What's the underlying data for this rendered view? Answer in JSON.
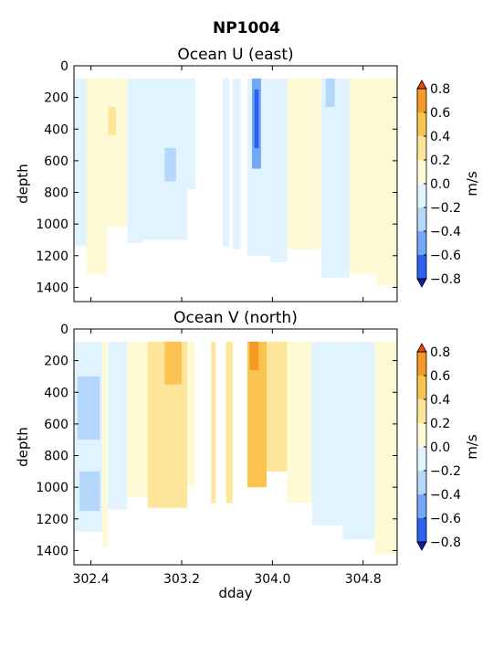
{
  "figure_title": "NP1004",
  "chart_data": [
    {
      "type": "heatmap",
      "title": "Ocean U (east)",
      "xlabel": "",
      "ylabel": "depth",
      "xlim": [
        302.25,
        305.1
      ],
      "ylim": [
        1490,
        0
      ],
      "x_ticks": [
        302.4,
        303.2,
        304.0,
        304.8
      ],
      "x_tick_labels": [
        "",
        "",
        "",
        ""
      ],
      "y_ticks": [
        0,
        200,
        400,
        600,
        800,
        1000,
        1200,
        1400
      ],
      "y_tick_labels": [
        "0",
        "200",
        "400",
        "600",
        "800",
        "1000",
        "1200",
        "1400"
      ],
      "colorbar": {
        "label": "m/s",
        "ticks": [
          "0.8",
          "0.6",
          "0.4",
          "0.2",
          "0.0",
          "−0.2",
          "−0.4",
          "−0.6",
          "−0.8"
        ]
      },
      "regions": [
        {
          "x": [
            302.25,
            302.36
          ],
          "depth": [
            80,
            1140
          ],
          "value": -0.1
        },
        {
          "x": [
            302.36,
            302.54
          ],
          "depth": [
            80,
            1320
          ],
          "value": 0.1
        },
        {
          "x": [
            302.54,
            302.72
          ],
          "depth": [
            80,
            1020
          ],
          "value": 0.1
        },
        {
          "x": [
            302.55,
            302.62
          ],
          "depth": [
            260,
            440
          ],
          "value": 0.3
        },
        {
          "x": [
            302.72,
            302.86
          ],
          "depth": [
            80,
            1120
          ],
          "value": -0.1
        },
        {
          "x": [
            302.86,
            303.25
          ],
          "depth": [
            80,
            1100
          ],
          "value": -0.1
        },
        {
          "x": [
            303.05,
            303.15
          ],
          "depth": [
            520,
            730
          ],
          "value": -0.3
        },
        {
          "x": [
            303.25,
            303.32
          ],
          "depth": [
            80,
            780
          ],
          "value": -0.1
        },
        {
          "x": [
            303.56,
            303.62
          ],
          "depth": [
            80,
            1140
          ],
          "value": -0.1
        },
        {
          "x": [
            303.65,
            303.72
          ],
          "depth": [
            80,
            1160
          ],
          "value": -0.1
        },
        {
          "x": [
            303.78,
            303.98
          ],
          "depth": [
            80,
            1200
          ],
          "value": -0.1
        },
        {
          "x": [
            303.82,
            303.9
          ],
          "depth": [
            80,
            650
          ],
          "value": -0.5
        },
        {
          "x": [
            303.84,
            303.88
          ],
          "depth": [
            150,
            520
          ],
          "value": -0.7
        },
        {
          "x": [
            303.98,
            304.13
          ],
          "depth": [
            80,
            1240
          ],
          "value": -0.1
        },
        {
          "x": [
            304.13,
            304.43
          ],
          "depth": [
            80,
            1160
          ],
          "value": 0.1
        },
        {
          "x": [
            304.43,
            304.68
          ],
          "depth": [
            80,
            1340
          ],
          "value": -0.1
        },
        {
          "x": [
            304.47,
            304.55
          ],
          "depth": [
            80,
            260
          ],
          "value": -0.3
        },
        {
          "x": [
            304.68,
            304.92
          ],
          "depth": [
            80,
            1320
          ],
          "value": 0.1
        },
        {
          "x": [
            304.92,
            305.1
          ],
          "depth": [
            80,
            1390
          ],
          "value": 0.1
        }
      ]
    },
    {
      "type": "heatmap",
      "title": "Ocean V (north)",
      "xlabel": "dday",
      "ylabel": "depth",
      "xlim": [
        302.25,
        305.1
      ],
      "ylim": [
        1490,
        0
      ],
      "x_ticks": [
        302.4,
        303.2,
        304.0,
        304.8
      ],
      "x_tick_labels": [
        "302.4",
        "303.2",
        "304.0",
        "304.8"
      ],
      "y_ticks": [
        0,
        200,
        400,
        600,
        800,
        1000,
        1200,
        1400
      ],
      "y_tick_labels": [
        "0",
        "200",
        "400",
        "600",
        "800",
        "1000",
        "1200",
        "1400"
      ],
      "colorbar": {
        "label": "m/s",
        "ticks": [
          "0.8",
          "0.6",
          "0.4",
          "0.2",
          "0.0",
          "−0.2",
          "−0.4",
          "−0.6",
          "−0.8"
        ]
      },
      "regions": [
        {
          "x": [
            302.25,
            302.5
          ],
          "depth": [
            80,
            1280
          ],
          "value": -0.1
        },
        {
          "x": [
            302.28,
            302.48
          ],
          "depth": [
            300,
            700
          ],
          "value": -0.3
        },
        {
          "x": [
            302.3,
            302.48
          ],
          "depth": [
            900,
            1150
          ],
          "value": -0.3
        },
        {
          "x": [
            302.5,
            302.55
          ],
          "depth": [
            80,
            1380
          ],
          "value": 0.1
        },
        {
          "x": [
            302.55,
            302.72
          ],
          "depth": [
            80,
            1140
          ],
          "value": -0.1
        },
        {
          "x": [
            302.72,
            302.9
          ],
          "depth": [
            80,
            1060
          ],
          "value": 0.1
        },
        {
          "x": [
            302.9,
            303.25
          ],
          "depth": [
            80,
            1130
          ],
          "value": 0.3
        },
        {
          "x": [
            303.05,
            303.2
          ],
          "depth": [
            80,
            350
          ],
          "value": 0.5
        },
        {
          "x": [
            303.25,
            303.32
          ],
          "depth": [
            80,
            990
          ],
          "value": 0.1
        },
        {
          "x": [
            303.46,
            303.5
          ],
          "depth": [
            80,
            1100
          ],
          "value": 0.3
        },
        {
          "x": [
            303.59,
            303.65
          ],
          "depth": [
            80,
            1100
          ],
          "value": 0.3
        },
        {
          "x": [
            303.78,
            303.95
          ],
          "depth": [
            80,
            1000
          ],
          "value": 0.5
        },
        {
          "x": [
            303.8,
            303.88
          ],
          "depth": [
            80,
            260
          ],
          "value": 0.7
        },
        {
          "x": [
            303.95,
            304.13
          ],
          "depth": [
            80,
            900
          ],
          "value": 0.3
        },
        {
          "x": [
            304.13,
            304.35
          ],
          "depth": [
            80,
            1100
          ],
          "value": 0.1
        },
        {
          "x": [
            304.35,
            304.62
          ],
          "depth": [
            80,
            1240
          ],
          "value": -0.1
        },
        {
          "x": [
            304.62,
            304.9
          ],
          "depth": [
            80,
            1330
          ],
          "value": -0.1
        },
        {
          "x": [
            304.9,
            305.1
          ],
          "depth": [
            80,
            1420
          ],
          "value": 0.1
        }
      ]
    }
  ],
  "colors": {
    "levels": [
      "#0a1fb0",
      "#2b62f0",
      "#74a7f5",
      "#b4d7fb",
      "#e1f3ff",
      "#fffad6",
      "#fde69a",
      "#fbc350",
      "#f59a24",
      "#e04d0e"
    ],
    "level_bounds": [
      -1.0,
      -0.8,
      -0.6,
      -0.4,
      -0.2,
      0.0,
      0.2,
      0.4,
      0.6,
      0.8,
      1.0
    ]
  }
}
